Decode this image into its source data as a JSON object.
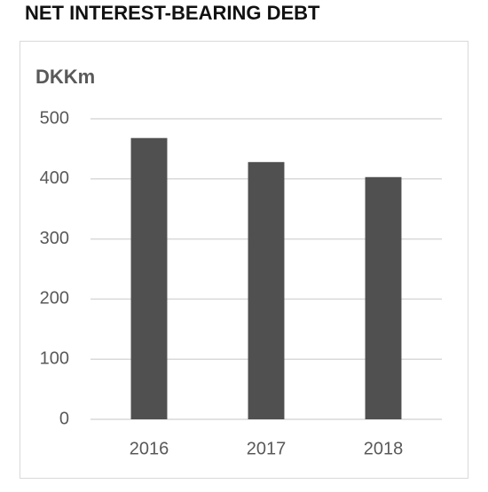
{
  "chart_data": {
    "type": "bar",
    "title": "NET INTEREST-BEARING DEBT",
    "y_label": "DKKm",
    "categories": [
      "2016",
      "2017",
      "2018"
    ],
    "values": [
      468,
      428,
      403
    ],
    "color": "#505050",
    "ylim": [
      0,
      500
    ],
    "yticks": [
      0,
      100,
      200,
      300,
      400,
      500
    ],
    "grid": true
  }
}
